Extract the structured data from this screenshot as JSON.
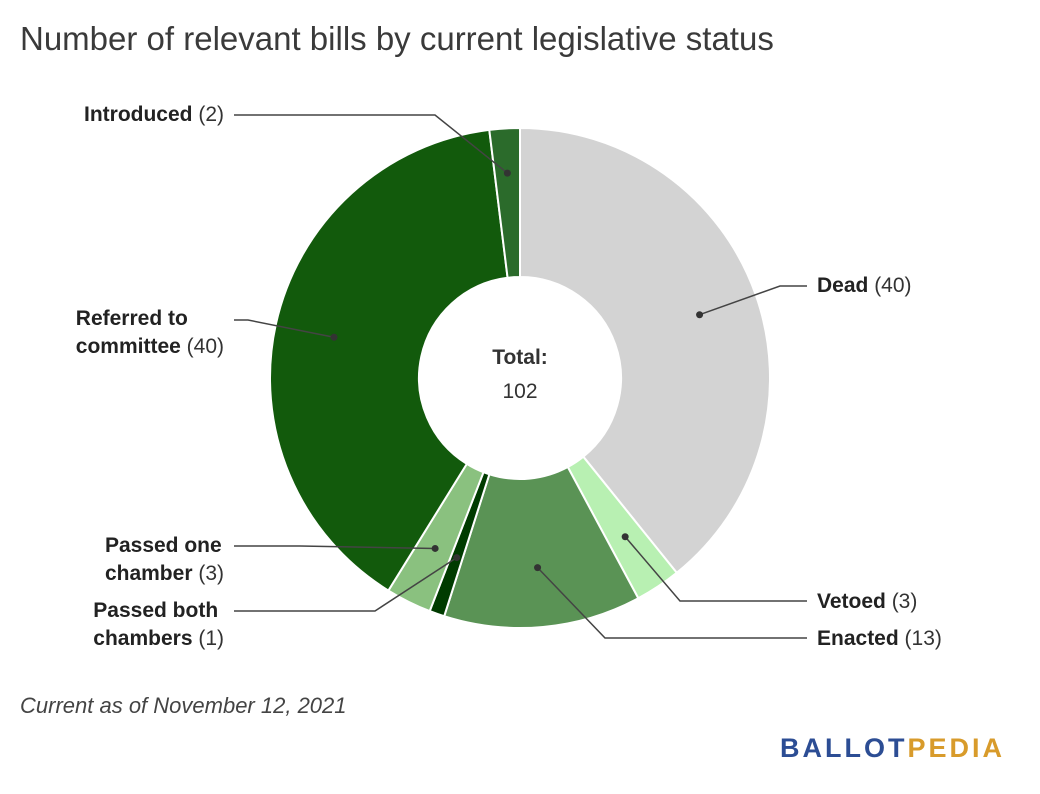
{
  "title": "Number of relevant bills by current legislative status",
  "chart_data": {
    "type": "pie",
    "style": "donut",
    "title": "Number of relevant bills by current legislative status",
    "total_label": "Total:",
    "total_value": "102",
    "slices": [
      {
        "label": "Dead",
        "label_lines": [
          "Dead"
        ],
        "value": 40,
        "color": "#d3d3d3"
      },
      {
        "label": "Vetoed",
        "label_lines": [
          "Vetoed"
        ],
        "value": 3,
        "color": "#b8f0b2"
      },
      {
        "label": "Enacted",
        "label_lines": [
          "Enacted"
        ],
        "value": 13,
        "color": "#5a9355"
      },
      {
        "label": "Passed both chambers",
        "label_lines": [
          "Passed both",
          "chambers"
        ],
        "value": 1,
        "color": "#003b00"
      },
      {
        "label": "Passed one chamber",
        "label_lines": [
          "Passed one",
          "chamber"
        ],
        "value": 3,
        "color": "#8ac17f"
      },
      {
        "label": "Referred to committee",
        "label_lines": [
          "Referred to",
          "committee"
        ],
        "value": 40,
        "color": "#125a0c"
      },
      {
        "label": "Introduced",
        "label_lines": [
          "Introduced"
        ],
        "value": 2,
        "color": "#2b6b2b"
      }
    ]
  },
  "footnote": "Current as of November 12, 2021",
  "logo": {
    "part1": "BALLOT",
    "part2": "PEDIA"
  }
}
